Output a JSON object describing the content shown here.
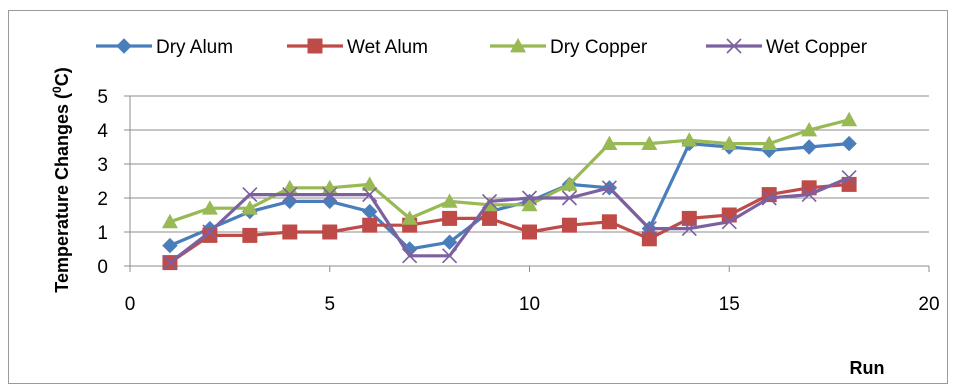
{
  "chart_data": {
    "type": "line",
    "title": "",
    "xlabel": "Run",
    "ylabel": "Temperature  Changes (⁰C)",
    "ylabel_main": "Temperature  Changes (",
    "ylabel_sup": "0",
    "ylabel_tail": "C)",
    "xlim": [
      0,
      20
    ],
    "ylim": [
      0,
      5
    ],
    "x_ticks": [
      "0",
      "5",
      "10",
      "15",
      "20"
    ],
    "y_ticks": [
      "0",
      "1",
      "2",
      "3",
      "4",
      "5"
    ],
    "grid": "horizontal",
    "legend_position": "top",
    "x": [
      1,
      2,
      3,
      4,
      5,
      6,
      7,
      8,
      9,
      10,
      11,
      12,
      13,
      14,
      15,
      16,
      17,
      18
    ],
    "series": [
      {
        "name": "Dry Alum",
        "color": "#4a7ebb",
        "marker": "diamond",
        "values": [
          0.6,
          1.1,
          1.6,
          1.9,
          1.9,
          1.6,
          0.5,
          0.7,
          1.6,
          1.9,
          2.4,
          2.3,
          1.1,
          3.6,
          3.5,
          3.4,
          3.5,
          3.6
        ]
      },
      {
        "name": "Wet Alum",
        "color": "#be4b48",
        "marker": "square",
        "values": [
          0.1,
          0.9,
          0.9,
          1.0,
          1.0,
          1.2,
          1.2,
          1.4,
          1.4,
          1.0,
          1.2,
          1.3,
          0.8,
          1.4,
          1.5,
          2.1,
          2.3,
          2.4
        ]
      },
      {
        "name": "Dry Copper",
        "color": "#98b954",
        "marker": "triangle",
        "values": [
          1.3,
          1.7,
          1.7,
          2.3,
          2.3,
          2.4,
          1.4,
          1.9,
          1.8,
          1.8,
          2.4,
          3.6,
          3.6,
          3.7,
          3.6,
          3.6,
          4.0,
          4.3
        ]
      },
      {
        "name": "Wet Copper",
        "color": "#7d60a0",
        "marker": "x",
        "values": [
          0.1,
          1.0,
          2.1,
          2.1,
          2.1,
          2.1,
          0.3,
          0.3,
          1.9,
          2.0,
          2.0,
          2.3,
          1.1,
          1.1,
          1.3,
          2.0,
          2.1,
          2.6
        ]
      }
    ]
  }
}
